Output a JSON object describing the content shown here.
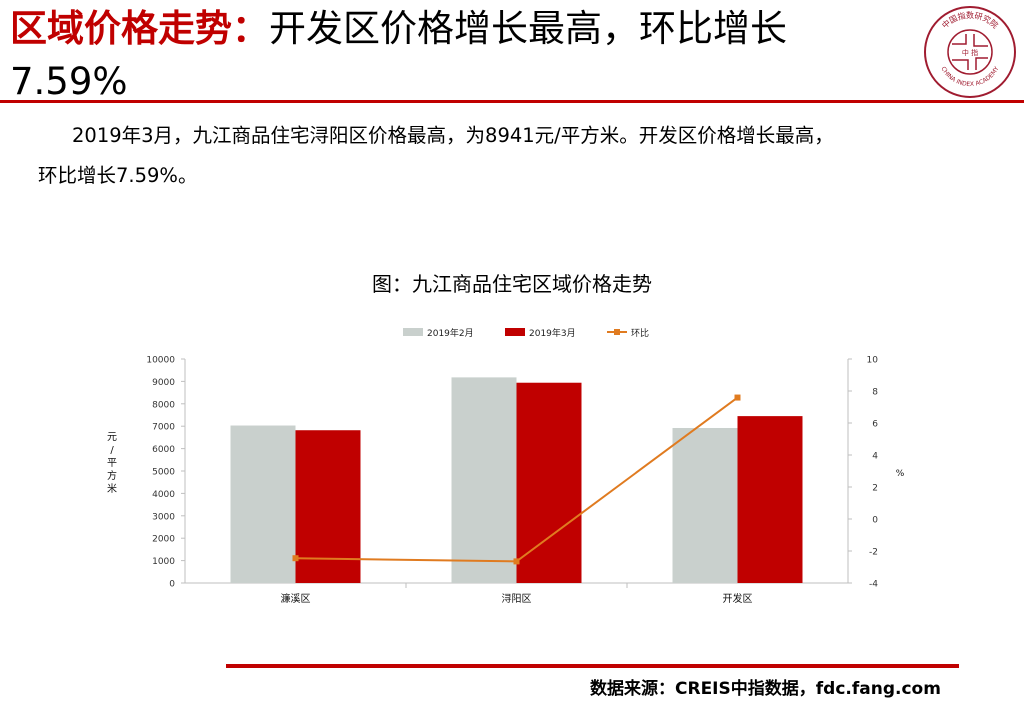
{
  "header": {
    "title_highlight": "区域价格走势：",
    "title_rest": "开发区价格增长最高，环比增长",
    "title_line2": "7.59%",
    "logo": {
      "icon": "china-index-academy-seal",
      "top_chars": "中国指数研究院",
      "center_chars": "中 指",
      "bottom_text": "CHINA INDEX ACADEMY"
    }
  },
  "body": {
    "line1": "2019年3月，九江商品住宅浔阳区价格最高，为8941元/平方米。开发区价格增长最高，",
    "line2": "环比增长7.59%。"
  },
  "chart_title": "图：九江商品住宅区域价格走势",
  "chart_data": {
    "type": "bar",
    "categories": [
      "濂溪区",
      "浔阳区",
      "开发区"
    ],
    "series": [
      {
        "name": "2019年2月",
        "type": "bar",
        "axis": "left",
        "color": "#c9d0cd",
        "values": [
          7030,
          9180,
          6920
        ]
      },
      {
        "name": "2019年3月",
        "type": "bar",
        "axis": "left",
        "color": "#c00000",
        "values": [
          6820,
          8941,
          7450
        ]
      },
      {
        "name": "环比",
        "type": "line",
        "axis": "right",
        "color": "#e07b20",
        "values": [
          -2.45,
          -2.65,
          7.59
        ]
      }
    ],
    "ylabel": "元/平方米",
    "y2label": "%",
    "ylim": [
      0,
      10000
    ],
    "y_ticks": [
      "0",
      "1000",
      "2000",
      "3000",
      "4000",
      "5000",
      "6000",
      "7000",
      "8000",
      "9000",
      "10000"
    ],
    "y2lim": [
      -4,
      10
    ],
    "y2_ticks": [
      "-4",
      "-2",
      "0",
      "2",
      "4",
      "6",
      "8",
      "10"
    ],
    "legend_position": "top",
    "grid": false
  },
  "footer": {
    "source": "数据来源：CREIS中指数据，fdc.fang.com"
  },
  "colors": {
    "accent": "#c00000",
    "bar_prev": "#c9d0cd",
    "bar_curr": "#c00000",
    "line": "#e07b20",
    "axis": "#bfbfbf"
  }
}
